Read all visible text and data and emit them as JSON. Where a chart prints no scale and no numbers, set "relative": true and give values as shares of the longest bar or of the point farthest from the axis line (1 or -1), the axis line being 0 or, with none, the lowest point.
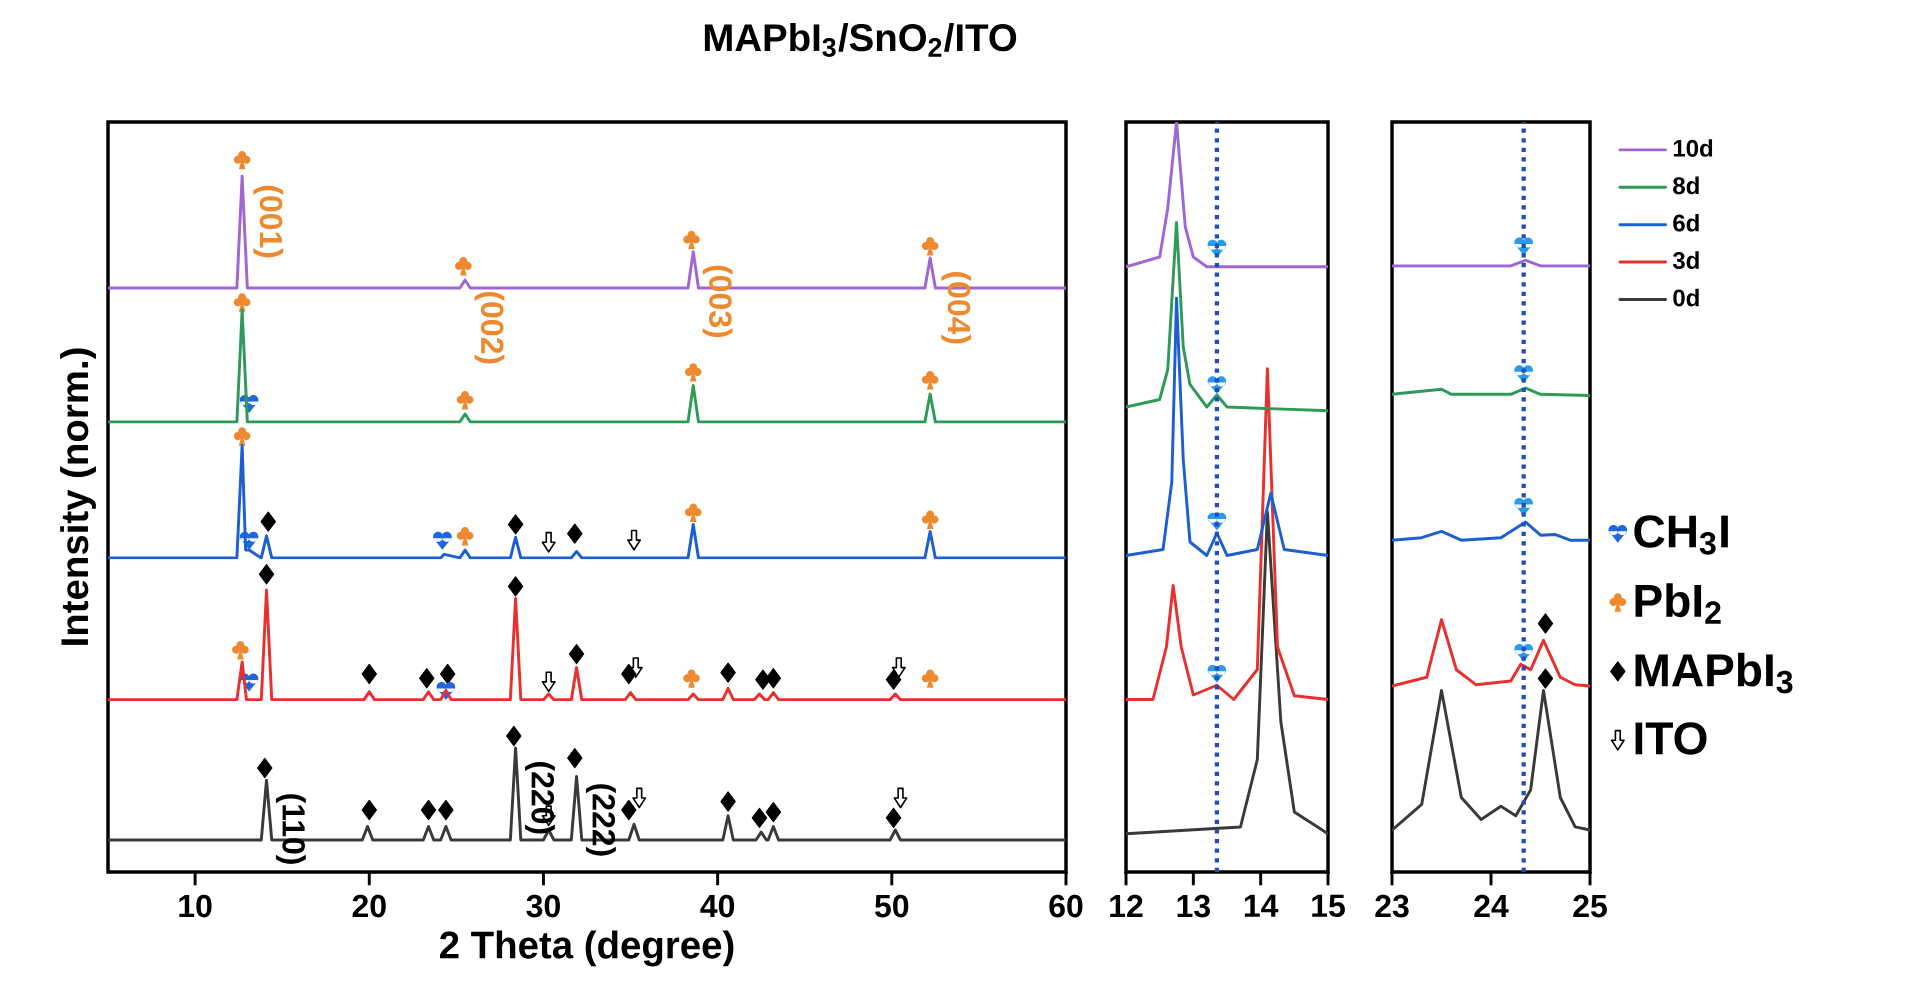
{
  "chart_data": [
    {
      "type": "line",
      "title": "MAPbI$_{3}$/SnO$_{2}$/ITO",
      "xlabel": "2 Theta (degree)",
      "ylabel": "Intensity (norm.)",
      "xlim": [
        5,
        60
      ],
      "xticks": [
        10,
        20,
        30,
        40,
        50,
        60
      ],
      "relative": true,
      "tick_labels": "x",
      "legend": "right",
      "annotations": [
        {
          "text": "(001)",
          "x": 12.7,
          "y": 1.0
        },
        {
          "text": "(002)",
          "x": 25.4,
          "y": 0.851
        },
        {
          "text": "(003)",
          "x": 38.5,
          "y": 0.888
        },
        {
          "text": "(004)",
          "x": 52.2,
          "y": 0.879
        },
        {
          "text": "(110)",
          "x": 14.0,
          "y": 0.146
        },
        {
          "text": "(220)",
          "x": 28.3,
          "y": 0.191
        },
        {
          "text": "(222)",
          "x": 31.8,
          "y": 0.16
        }
      ],
      "series": [
        {
          "color": "#a066d3",
          "x": [
            5,
            12.4,
            12.7,
            13.0,
            25.2,
            25.5,
            25.8,
            38.3,
            38.6,
            38.9,
            51.9,
            52.2,
            52.5,
            60
          ],
          "values": [
            0.82,
            0.82,
            0.977,
            0.82,
            0.82,
            0.831,
            0.82,
            0.82,
            0.871,
            0.82,
            0.82,
            0.862,
            0.82,
            0.82
          ]
        },
        {
          "color": "#2e9a58",
          "x": [
            5,
            12.4,
            12.7,
            13.0,
            25.2,
            25.5,
            25.8,
            38.3,
            38.6,
            38.9,
            51.9,
            52.2,
            52.5,
            60
          ],
          "values": [
            0.632,
            0.632,
            0.789,
            0.632,
            0.632,
            0.643,
            0.632,
            0.632,
            0.683,
            0.632,
            0.632,
            0.671,
            0.632,
            0.632
          ]
        },
        {
          "color": "#1c5fd0",
          "x": [
            5,
            12.4,
            12.7,
            12.9,
            13.1,
            13.8,
            14.1,
            14.4,
            24.1,
            24.3,
            25.2,
            25.5,
            25.8,
            28.1,
            28.4,
            28.7,
            31.6,
            31.9,
            32.2,
            38.3,
            38.6,
            38.9,
            51.9,
            52.2,
            52.5,
            60
          ],
          "values": [
            0.441,
            0.441,
            0.599,
            0.452,
            0.452,
            0.441,
            0.472,
            0.441,
            0.441,
            0.446,
            0.441,
            0.452,
            0.441,
            0.441,
            0.47,
            0.441,
            0.441,
            0.45,
            0.441,
            0.441,
            0.488,
            0.441,
            0.441,
            0.478,
            0.441,
            0.441
          ]
        },
        {
          "color": "#e8302e",
          "x": [
            5,
            12.4,
            12.7,
            12.95,
            13.8,
            14.1,
            14.4,
            19.7,
            20,
            20.3,
            23.1,
            23.4,
            23.7,
            24.1,
            24.4,
            24.7,
            28.1,
            28.4,
            28.7,
            30,
            30.3,
            30.6,
            31.6,
            31.9,
            32.2,
            34.7,
            35,
            35.3,
            38.3,
            38.6,
            38.9,
            40.3,
            40.6,
            40.9,
            42.1,
            42.4,
            42.7,
            42.9,
            43.2,
            43.5,
            49.9,
            50.2,
            50.5,
            60
          ],
          "values": [
            0.242,
            0.242,
            0.295,
            0.242,
            0.242,
            0.396,
            0.242,
            0.242,
            0.253,
            0.242,
            0.242,
            0.253,
            0.242,
            0.242,
            0.255,
            0.242,
            0.242,
            0.384,
            0.242,
            0.242,
            0.25,
            0.242,
            0.242,
            0.287,
            0.242,
            0.242,
            0.252,
            0.242,
            0.242,
            0.25,
            0.242,
            0.242,
            0.258,
            0.242,
            0.242,
            0.25,
            0.242,
            0.242,
            0.252,
            0.242,
            0.242,
            0.25,
            0.242,
            0.242
          ]
        },
        {
          "color": "#3a3a3a",
          "x": [
            5,
            13.8,
            14.1,
            14.4,
            19.6,
            19.9,
            20.2,
            23.1,
            23.4,
            23.7,
            24.1,
            24.4,
            24.7,
            28.1,
            28.4,
            28.7,
            30,
            30.3,
            30.6,
            31.6,
            31.9,
            32.2,
            34.9,
            35.2,
            35.5,
            40.3,
            40.6,
            40.9,
            42.2,
            42.5,
            42.8,
            42.9,
            43.2,
            43.5,
            49.9,
            50.2,
            50.5,
            60
          ],
          "values": [
            0.045,
            0.045,
            0.129,
            0.045,
            0.045,
            0.064,
            0.045,
            0.045,
            0.064,
            0.045,
            0.045,
            0.064,
            0.045,
            0.045,
            0.174,
            0.045,
            0.045,
            0.059,
            0.045,
            0.045,
            0.134,
            0.045,
            0.045,
            0.067,
            0.045,
            0.045,
            0.079,
            0.045,
            0.045,
            0.056,
            0.045,
            0.045,
            0.064,
            0.045,
            0.045,
            0.059,
            0.045,
            0.045
          ]
        },
        {
          "type": "scatter",
          "name": "CH$_{3}$I",
          "color": "#1f66e0",
          "x": [
            13.1,
            13.1,
            24.2,
            13.1,
            24.4
          ],
          "values": [
            0.658,
            0.466,
            0.466,
            0.267,
            0.255
          ]
        },
        {
          "type": "scatter",
          "name": "PbI$_{2}$",
          "color": "#ed8a2f",
          "x": [
            12.7,
            25.4,
            38.5,
            52.2,
            12.7,
            25.5,
            38.6,
            52.2,
            12.7,
            25.5,
            38.6,
            52.2,
            12.6,
            38.5,
            52.2
          ],
          "values": [
            1.0,
            0.851,
            0.888,
            0.879,
            0.8,
            0.663,
            0.702,
            0.691,
            0.612,
            0.472,
            0.505,
            0.495,
            0.312,
            0.272,
            0.272
          ]
        },
        {
          "type": "scatter",
          "name": "MAPbI$_{3}$",
          "marker": "diamond",
          "color": "#000000",
          "x": [
            14.2,
            28.4,
            31.8,
            14.1,
            20.0,
            23.3,
            24.5,
            28.4,
            31.9,
            34.9,
            40.6,
            42.6,
            43.2,
            50.1,
            14.0,
            20.0,
            23.4,
            24.4,
            28.3,
            31.8,
            34.9,
            40.6,
            42.4,
            43.2,
            50.1
          ],
          "values": [
            0.492,
            0.488,
            0.475,
            0.418,
            0.278,
            0.272,
            0.278,
            0.401,
            0.306,
            0.278,
            0.28,
            0.27,
            0.272,
            0.27,
            0.146,
            0.087,
            0.087,
            0.087,
            0.191,
            0.16,
            0.087,
            0.099,
            0.076,
            0.084,
            0.076
          ]
        },
        {
          "type": "scatter",
          "name": "ITO",
          "color": "#000000",
          "x": [
            30.3,
            35.2,
            30.3,
            35.3,
            50.4,
            30.3,
            35.5,
            50.5
          ],
          "values": [
            0.463,
            0.466,
            0.267,
            0.287,
            0.287,
            0.079,
            0.104,
            0.104
          ]
        }
      ]
    },
    {
      "type": "line",
      "xlim": [
        12,
        15
      ],
      "xticks": [
        12,
        13,
        14,
        15
      ],
      "relative": true,
      "tick_labels": "x",
      "series": [
        {
          "color": "#a066d3",
          "x": [
            12,
            12.5,
            12.62,
            12.75,
            12.88,
            13.0,
            13.2,
            15
          ],
          "values": [
            0.807,
            0.82,
            0.885,
            1.0,
            0.86,
            0.82,
            0.807,
            0.807
          ]
        },
        {
          "color": "#2e9a58",
          "x": [
            12,
            12.5,
            12.62,
            12.75,
            12.85,
            12.95,
            13.2,
            13.35,
            13.5,
            15
          ],
          "values": [
            0.62,
            0.63,
            0.67,
            0.866,
            0.7,
            0.65,
            0.62,
            0.636,
            0.62,
            0.615
          ]
        },
        {
          "color": "#1c5fd0",
          "x": [
            12,
            12.55,
            12.68,
            12.75,
            12.85,
            12.95,
            13.2,
            13.35,
            13.5,
            13.95,
            14.15,
            14.35,
            15
          ],
          "values": [
            0.422,
            0.43,
            0.52,
            0.765,
            0.55,
            0.44,
            0.422,
            0.452,
            0.422,
            0.43,
            0.505,
            0.43,
            0.422
          ]
        },
        {
          "color": "#e8302e",
          "x": [
            12,
            12.4,
            12.6,
            12.7,
            12.82,
            13.0,
            13.35,
            13.6,
            13.95,
            14.1,
            14.25,
            14.5,
            15
          ],
          "values": [
            0.23,
            0.23,
            0.3,
            0.382,
            0.3,
            0.236,
            0.249,
            0.23,
            0.27,
            0.671,
            0.3,
            0.235,
            0.23
          ]
        },
        {
          "color": "#3a3a3a",
          "x": [
            12,
            13.7,
            13.95,
            14.1,
            14.3,
            14.5,
            15
          ],
          "values": [
            0.051,
            0.06,
            0.15,
            0.48,
            0.2,
            0.08,
            0.051
          ]
        },
        {
          "type": "scatter",
          "color": "#2a9be8",
          "x": [
            13.35,
            13.35,
            13.35,
            13.35
          ],
          "values": [
            0.832,
            0.65,
            0.468,
            0.265
          ]
        }
      ],
      "ref_lines": [
        {
          "axis": "x",
          "value": 13.35,
          "color": "#1f4fbf",
          "line_style": "dotted"
        }
      ]
    },
    {
      "type": "line",
      "xlim": [
        23,
        25
      ],
      "xticks": [
        23,
        24,
        25
      ],
      "relative": true,
      "tick_labels": "x",
      "legend": "top right",
      "series": [
        {
          "name": "10d",
          "color": "#a066d3",
          "x": [
            23,
            24.2,
            24.35,
            24.5,
            25
          ],
          "values": [
            0.968,
            0.968,
            0.977,
            0.968,
            0.968
          ]
        },
        {
          "name": "8d",
          "color": "#2e9a58",
          "x": [
            23,
            23.5,
            23.6,
            24.2,
            24.35,
            24.5,
            25
          ],
          "values": [
            0.763,
            0.771,
            0.763,
            0.763,
            0.773,
            0.763,
            0.761
          ]
        },
        {
          "name": "6d",
          "color": "#1c5fd0",
          "x": [
            23,
            23.3,
            23.5,
            23.7,
            24.1,
            24.35,
            24.5,
            24.65,
            24.8,
            25
          ],
          "values": [
            0.53,
            0.534,
            0.544,
            0.53,
            0.534,
            0.559,
            0.538,
            0.539,
            0.53,
            0.53
          ]
        },
        {
          "name": "3d",
          "color": "#e8302e",
          "x": [
            23,
            23.35,
            23.5,
            23.65,
            23.85,
            24.2,
            24.3,
            24.4,
            24.53,
            24.7,
            24.85,
            25
          ],
          "values": [
            0.297,
            0.311,
            0.403,
            0.323,
            0.299,
            0.305,
            0.332,
            0.323,
            0.37,
            0.311,
            0.299,
            0.297
          ]
        },
        {
          "name": "0d",
          "color": "#3a3a3a",
          "x": [
            23,
            23.3,
            23.5,
            23.7,
            23.9,
            24.1,
            24.25,
            24.4,
            24.53,
            24.7,
            24.85,
            25
          ],
          "values": [
            0.067,
            0.108,
            0.29,
            0.119,
            0.084,
            0.105,
            0.09,
            0.131,
            0.29,
            0.119,
            0.072,
            0.067
          ]
        },
        {
          "type": "scatter",
          "color": "#2a9be8",
          "x": [
            24.33,
            24.33,
            24.33,
            24.33
          ],
          "values": [
            1.0,
            0.796,
            0.584,
            0.351
          ]
        },
        {
          "type": "scatter",
          "marker": "diamond",
          "color": "#000000",
          "x": [
            24.55,
            24.55
          ],
          "values": [
            0.397,
            0.309
          ]
        }
      ],
      "ref_lines": [
        {
          "axis": "x",
          "value": 24.33,
          "color": "#1f4fbf",
          "line_style": "dotted"
        }
      ]
    }
  ]
}
